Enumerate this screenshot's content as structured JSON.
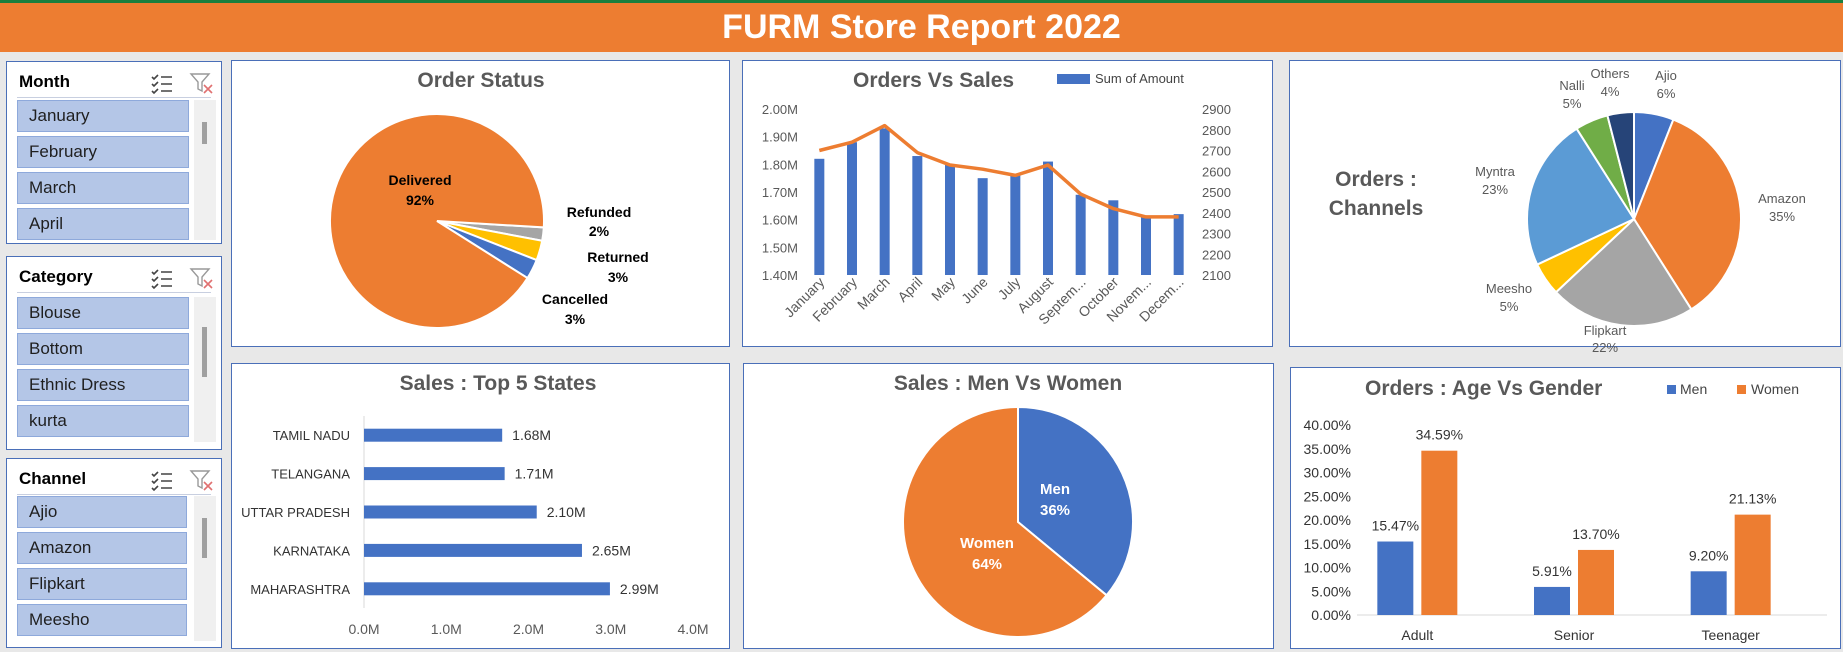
{
  "report": {
    "title": "FURM Store Report 2022"
  },
  "icons": [
    "multi-select-icon",
    "clear-filter-icon"
  ],
  "slicers": {
    "month": {
      "title": "Month",
      "items": [
        "January",
        "February",
        "March",
        "April"
      ]
    },
    "category": {
      "title": "Category",
      "items": [
        "Blouse",
        "Bottom",
        "Ethnic Dress",
        "kurta"
      ]
    },
    "channel": {
      "title": "Channel",
      "items": [
        "Ajio",
        "Amazon",
        "Flipkart",
        "Meesho"
      ]
    }
  },
  "colors": {
    "orange": "#ed7d31",
    "blue": "#4472c4",
    "grey": "#a5a5a5",
    "yellow": "#ffc000",
    "lightblue": "#5b9bd5",
    "green": "#70ad47",
    "navy": "#264478"
  },
  "chart_data": [
    {
      "id": "order_status",
      "type": "pie",
      "title": "Order Status",
      "labels": [
        "Delivered",
        "Cancelled",
        "Returned",
        "Refunded"
      ],
      "values": [
        92,
        3,
        3,
        2
      ],
      "display": [
        "92%",
        "3%",
        "3%",
        "2%"
      ],
      "colors": [
        "#ed7d31",
        "#4472c4",
        "#ffc000",
        "#a5a5a5"
      ]
    },
    {
      "id": "orders_vs_sales",
      "type": "bar",
      "title": "Orders Vs Sales",
      "legend": [
        "Sum of Amount"
      ],
      "categories": [
        "January",
        "February",
        "March",
        "April",
        "May",
        "June",
        "July",
        "August",
        "Septem...",
        "October",
        "Novem...",
        "Decem..."
      ],
      "series": [
        {
          "name": "Sum of Amount",
          "type": "bar",
          "axis": "left",
          "values": [
            1.82,
            1.88,
            1.93,
            1.83,
            1.8,
            1.75,
            1.76,
            1.81,
            1.69,
            1.67,
            1.61,
            1.62
          ]
        },
        {
          "type": "line",
          "axis": "right",
          "values": [
            2700,
            2740,
            2820,
            2690,
            2630,
            2610,
            2580,
            2630,
            2490,
            2420,
            2380,
            2380
          ]
        }
      ],
      "ylim_left": [
        1.4,
        2.0
      ],
      "yticks_left": [
        "1.40M",
        "1.50M",
        "1.60M",
        "1.70M",
        "1.80M",
        "1.90M",
        "2.00M"
      ],
      "ylim_right": [
        2100,
        2900
      ],
      "yticks_right": [
        "2100",
        "2200",
        "2300",
        "2400",
        "2500",
        "2600",
        "2700",
        "2800",
        "2900"
      ]
    },
    {
      "id": "orders_channels",
      "type": "pie",
      "title": "Orders : Channels",
      "labels": [
        "Ajio",
        "Amazon",
        "Flipkart",
        "Meesho",
        "Myntra",
        "Nalli",
        "Others"
      ],
      "values": [
        6,
        35,
        22,
        5,
        23,
        5,
        4
      ],
      "display": [
        "6%",
        "35%",
        "22%",
        "5%",
        "23%",
        "5%",
        "4%"
      ],
      "colors": [
        "#4472c4",
        "#ed7d31",
        "#a5a5a5",
        "#ffc000",
        "#5b9bd5",
        "#70ad47",
        "#264478"
      ]
    },
    {
      "id": "top5_states",
      "type": "bar",
      "orientation": "horizontal",
      "title": "Sales : Top 5 States",
      "categories": [
        "TAMIL NADU",
        "TELANGANA",
        "UTTAR PRADESH",
        "KARNATAKA",
        "MAHARASHTRA"
      ],
      "values": [
        1.68,
        1.71,
        2.1,
        2.65,
        2.99
      ],
      "value_labels": [
        "1.68M",
        "1.71M",
        "2.10M",
        "2.65M",
        "2.99M"
      ],
      "xlim": [
        0,
        4
      ],
      "xticks": [
        "0.0M",
        "1.0M",
        "2.0M",
        "3.0M",
        "4.0M"
      ]
    },
    {
      "id": "men_vs_women",
      "type": "pie",
      "title": "Sales : Men Vs Women",
      "labels": [
        "Men",
        "Women"
      ],
      "values": [
        36,
        64
      ],
      "display": [
        "36%",
        "64%"
      ],
      "colors": [
        "#4472c4",
        "#ed7d31"
      ]
    },
    {
      "id": "age_vs_gender",
      "type": "bar",
      "title": "Orders : Age Vs Gender",
      "categories": [
        "Adult",
        "Senior",
        "Teenager"
      ],
      "series": [
        {
          "name": "Men",
          "values": [
            15.47,
            5.91,
            9.2
          ],
          "labels": [
            "15.47%",
            "5.91%",
            "9.20%"
          ]
        },
        {
          "name": "Women",
          "values": [
            34.59,
            13.7,
            21.13
          ],
          "labels": [
            "34.59%",
            "13.70%",
            "21.13%"
          ]
        }
      ],
      "ylim": [
        0,
        40
      ],
      "yticks": [
        "0.00%",
        "5.00%",
        "10.00%",
        "15.00%",
        "20.00%",
        "25.00%",
        "30.00%",
        "35.00%",
        "40.00%"
      ]
    }
  ]
}
